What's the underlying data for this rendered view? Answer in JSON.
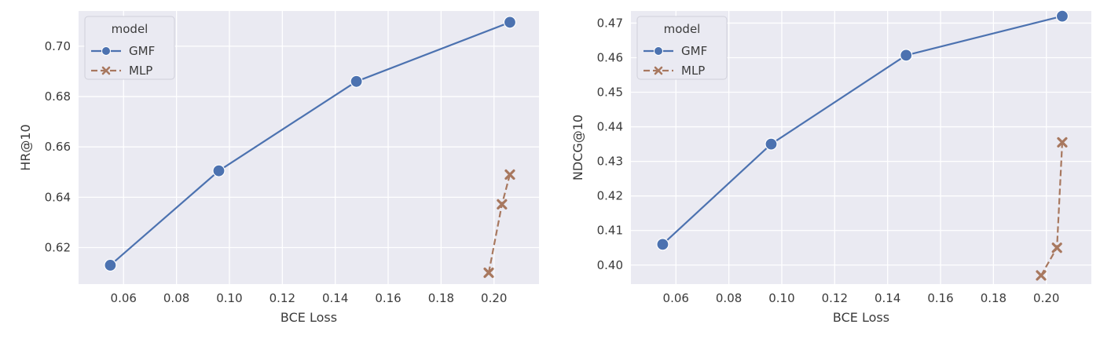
{
  "chart_data": [
    {
      "type": "line",
      "xlabel": "BCE Loss",
      "ylabel": "HR@10",
      "xlim": [
        0.043,
        0.217
      ],
      "ylim": [
        0.6055,
        0.714
      ],
      "xticks": [
        0.06,
        0.08,
        0.1,
        0.12,
        0.14,
        0.16,
        0.18,
        0.2
      ],
      "xtick_labels": [
        "0.06",
        "0.08",
        "0.10",
        "0.12",
        "0.14",
        "0.16",
        "0.18",
        "0.20"
      ],
      "yticks": [
        0.62,
        0.64,
        0.66,
        0.68,
        0.7
      ],
      "ytick_labels": [
        "0.62",
        "0.64",
        "0.66",
        "0.68",
        "0.70"
      ],
      "grid": true,
      "legend": {
        "title": "model",
        "placement": "top-left"
      },
      "series": [
        {
          "name": "GMF",
          "color": "#4c72b0",
          "marker": "circle",
          "linestyle": "solid",
          "x": [
            0.055,
            0.096,
            0.148,
            0.206
          ],
          "y": [
            0.613,
            0.6505,
            0.686,
            0.7095
          ]
        },
        {
          "name": "MLP",
          "color": "#a8785f",
          "marker": "x",
          "linestyle": "dashed",
          "x": [
            0.198,
            0.203,
            0.206
          ],
          "y": [
            0.61,
            0.6372,
            0.649
          ]
        }
      ]
    },
    {
      "type": "line",
      "xlabel": "BCE Loss",
      "ylabel": "NDCG@10",
      "xlim": [
        0.043,
        0.217
      ],
      "ylim": [
        0.3945,
        0.4735
      ],
      "xticks": [
        0.06,
        0.08,
        0.1,
        0.12,
        0.14,
        0.16,
        0.18,
        0.2
      ],
      "xtick_labels": [
        "0.06",
        "0.08",
        "0.10",
        "0.12",
        "0.14",
        "0.16",
        "0.18",
        "0.20"
      ],
      "yticks": [
        0.4,
        0.41,
        0.42,
        0.43,
        0.44,
        0.45,
        0.46,
        0.47
      ],
      "ytick_labels": [
        "0.40",
        "0.41",
        "0.42",
        "0.43",
        "0.44",
        "0.45",
        "0.46",
        "0.47"
      ],
      "grid": true,
      "legend": {
        "title": "model",
        "placement": "top-left"
      },
      "series": [
        {
          "name": "GMF",
          "color": "#4c72b0",
          "marker": "circle",
          "linestyle": "solid",
          "x": [
            0.055,
            0.096,
            0.147,
            0.206
          ],
          "y": [
            0.406,
            0.435,
            0.4607,
            0.472
          ]
        },
        {
          "name": "MLP",
          "color": "#a8785f",
          "marker": "x",
          "linestyle": "dashed",
          "x": [
            0.198,
            0.204,
            0.206
          ],
          "y": [
            0.397,
            0.405,
            0.4355
          ]
        }
      ]
    }
  ],
  "style": {
    "plot_background": "#eaeaf2",
    "grid_color": "#ffffff",
    "text_color": "#3b3b3b",
    "legend_background": "#eaeaf2",
    "legend_border": "#d0d0da"
  }
}
